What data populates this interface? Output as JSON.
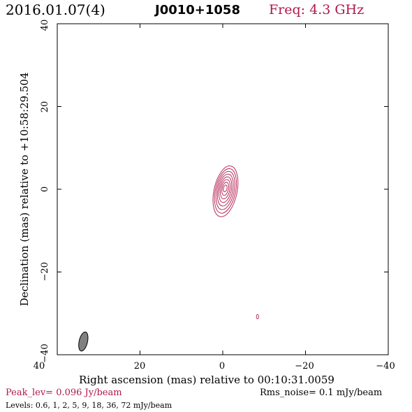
{
  "header": {
    "date": "2016.01.07(4)",
    "source": "J0010+1058",
    "frequency": "Freq: 4.3 GHz"
  },
  "axes": {
    "xlabel": "Right ascension (mas) relative to 00:10:31.0059",
    "ylabel": "Declination (mas) relative to +10:58:29.504",
    "x_ticks": [
      "40",
      "20",
      "0",
      "−20",
      "−40"
    ],
    "y_ticks": [
      "40",
      "20",
      "0",
      "−20",
      "−40"
    ]
  },
  "footer": {
    "peak": "Peak_lev=  0.096 Jy/beam",
    "rms": "Rms_noise=  0.1 mJy/beam",
    "levels": "Levels: 0.6,   1,   2,   5,   9,  18,  36,  72 mJy/beam"
  },
  "colors": {
    "contour": "#b0184a",
    "beam_fill": "#808080",
    "axis": "#000000"
  },
  "chart_data": {
    "type": "contour",
    "x_range": [
      40,
      -40
    ],
    "y_range": [
      -40,
      40
    ],
    "x_ticks": [
      40,
      20,
      0,
      -20,
      -40
    ],
    "y_ticks": [
      40,
      20,
      0,
      -20,
      -40
    ],
    "contour_levels_mJy": [
      0.6,
      1,
      2,
      5,
      9,
      18,
      36,
      72
    ],
    "source_center": [
      -0.6,
      0.2
    ],
    "beam_center": [
      33.7,
      -36.8
    ],
    "noise_contour_center": [
      -8.4,
      -30.8
    ]
  }
}
